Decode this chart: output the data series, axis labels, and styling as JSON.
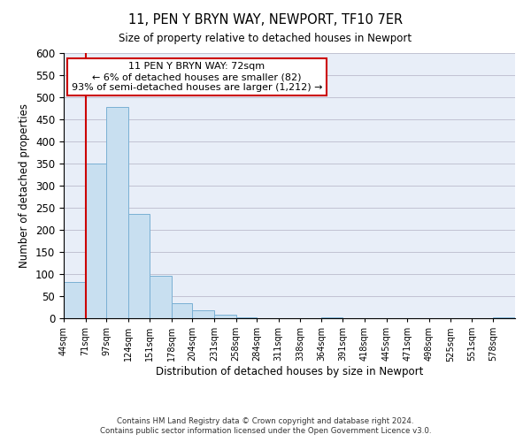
{
  "title": "11, PEN Y BRYN WAY, NEWPORT, TF10 7ER",
  "subtitle": "Size of property relative to detached houses in Newport",
  "xlabel": "Distribution of detached houses by size in Newport",
  "ylabel": "Number of detached properties",
  "bar_edges": [
    44,
    71,
    97,
    124,
    151,
    178,
    204,
    231,
    258,
    284,
    311,
    338,
    364,
    391,
    418,
    445,
    471,
    498,
    525,
    551,
    578
  ],
  "bar_heights": [
    82,
    350,
    478,
    236,
    97,
    35,
    18,
    8,
    2,
    0,
    0,
    0,
    2,
    0,
    0,
    0,
    0,
    0,
    0,
    0,
    2
  ],
  "bar_color": "#c8dff0",
  "bar_edge_color": "#7ab0d4",
  "highlight_x": 72,
  "highlight_line_color": "#cc0000",
  "annotation_box_color": "#ffffff",
  "annotation_box_edge": "#cc0000",
  "annotation_line1": "11 PEN Y BRYN WAY: 72sqm",
  "annotation_line2": "← 6% of detached houses are smaller (82)",
  "annotation_line3": "93% of semi-detached houses are larger (1,212) →",
  "ylim": [
    0,
    600
  ],
  "xlim_left": 44,
  "xlim_right": 605,
  "tick_labels": [
    "44sqm",
    "71sqm",
    "97sqm",
    "124sqm",
    "151sqm",
    "178sqm",
    "204sqm",
    "231sqm",
    "258sqm",
    "284sqm",
    "311sqm",
    "338sqm",
    "364sqm",
    "391sqm",
    "418sqm",
    "445sqm",
    "471sqm",
    "498sqm",
    "525sqm",
    "551sqm",
    "578sqm"
  ],
  "yticks": [
    0,
    50,
    100,
    150,
    200,
    250,
    300,
    350,
    400,
    450,
    500,
    550,
    600
  ],
  "plot_bg_color": "#e8eef8",
  "footer1": "Contains HM Land Registry data © Crown copyright and database right 2024.",
  "footer2": "Contains public sector information licensed under the Open Government Licence v3.0."
}
